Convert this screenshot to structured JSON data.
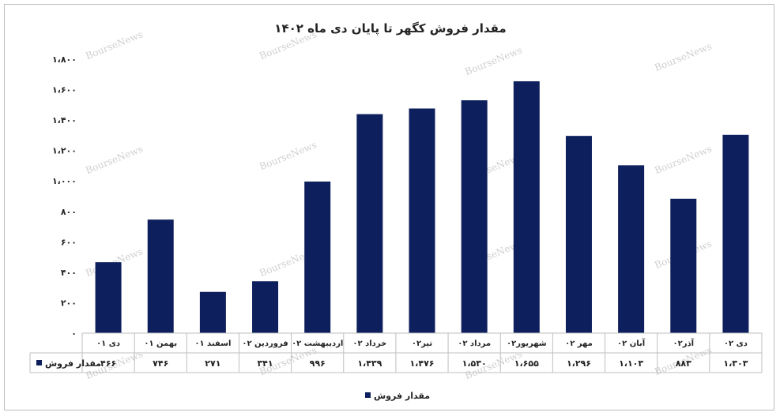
{
  "chart_data": {
    "type": "bar",
    "title": "مقدار فروش کگهر تا پایان دی ماه ۱۴۰۲",
    "categories": [
      "دی ۰۱",
      "بهمن ۰۱",
      "اسفند ۰۱",
      "فروردین ۰۲",
      "اردیبهشت ۰۲",
      "خرداد ۰۲",
      "تیر۰۲",
      "مرداد ۰۲",
      "شهریور۰۲",
      "مهر ۰۲",
      "آبان ۰۲",
      "آذر۰۲",
      "دی ۰۲"
    ],
    "series": [
      {
        "name": "مقدار فروش",
        "values": [
          466,
          746,
          271,
          341,
          996,
          1439,
          1476,
          1530,
          1655,
          1296,
          1103,
          883,
          1303
        ],
        "value_labels": [
          "۴۶۶",
          "۷۴۶",
          "۲۷۱",
          "۳۴۱",
          "۹۹۶",
          "۱،۴۳۹",
          "۱،۴۷۶",
          "۱،۵۳۰",
          "۱،۶۵۵",
          "۱،۲۹۶",
          "۱،۱۰۳",
          "۸۸۳",
          "۱،۳۰۳"
        ]
      }
    ],
    "ylim": [
      0,
      1800
    ],
    "yticks": [
      0,
      200,
      400,
      600,
      800,
      1000,
      1200,
      1400,
      1600,
      1800
    ],
    "ytick_labels": [
      "۰",
      "۲۰۰",
      "۴۰۰",
      "۶۰۰",
      "۸۰۰",
      "۱،۰۰۰",
      "۱،۲۰۰",
      "۱،۴۰۰",
      "۱،۶۰۰",
      "۱،۸۰۰"
    ],
    "bar_color": "#0d1f5c",
    "grid": false,
    "legend_position": "bottom",
    "data_table": true,
    "watermark": "BourseNews"
  }
}
